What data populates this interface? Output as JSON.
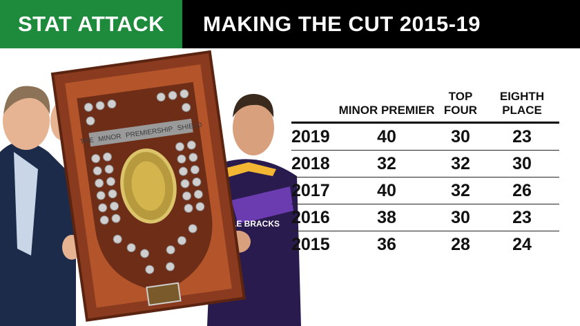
{
  "header": {
    "left_label": "STAT ATTACK",
    "title": "MAKING THE CUT 2015-19",
    "left_color": "#1e8a3c"
  },
  "photo": {
    "shield_words": [
      "THE",
      "MINOR",
      "PREMIERSHIP",
      "SHIELD"
    ],
    "jersey_text": "LE BRACKS"
  },
  "table": {
    "headers": [
      "",
      "MINOR PREMIER",
      "TOP FOUR",
      "EIGHTH PLACE"
    ],
    "rows": [
      {
        "year": "2019",
        "minor_premier": "40",
        "top_four": "30",
        "eighth_place": "23"
      },
      {
        "year": "2018",
        "minor_premier": "32",
        "top_four": "32",
        "eighth_place": "30"
      },
      {
        "year": "2017",
        "minor_premier": "40",
        "top_four": "32",
        "eighth_place": "26"
      },
      {
        "year": "2016",
        "minor_premier": "38",
        "top_four": "30",
        "eighth_place": "23"
      },
      {
        "year": "2015",
        "minor_premier": "36",
        "top_four": "28",
        "eighth_place": "24"
      }
    ]
  }
}
